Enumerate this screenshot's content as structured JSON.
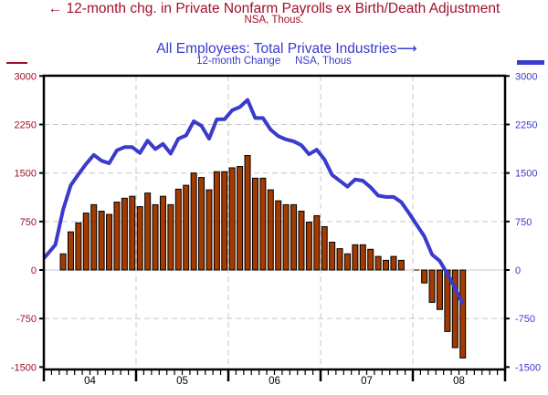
{
  "title_left": {
    "text": "12-month chg. in Private Nonfarm Payrolls ex Birth/Death Adjustment",
    "arrow": "←",
    "subtitle": "NSA, Thous."
  },
  "title_right": {
    "text": "All Employees: Total Private Industries",
    "arrow": "⟶",
    "subtitle_a": "12-month Change",
    "subtitle_b": "NSA, Thous"
  },
  "colors": {
    "left_series": "#a0102a",
    "bars_fill": "#a33a00",
    "right_series": "#3a3acc"
  },
  "chart_data": {
    "type": "bar+line",
    "grid": true,
    "x_tick_labels": [
      "04",
      "05",
      "06",
      "07",
      "08"
    ],
    "x_range": [
      "2004-01",
      "2008-12"
    ],
    "y_left": {
      "lim": [
        -1500,
        3000
      ],
      "ticks": [
        "3000",
        "2250",
        "1500",
        "750",
        "0",
        "-750",
        "-1500"
      ]
    },
    "y_right": {
      "lim": [
        -1500,
        3000
      ],
      "ticks": [
        "3000",
        "2250",
        "1500",
        "750",
        "0",
        "-750",
        "-1500"
      ]
    },
    "months": [
      "2004-01",
      "2004-02",
      "2004-03",
      "2004-04",
      "2004-05",
      "2004-06",
      "2004-07",
      "2004-08",
      "2004-09",
      "2004-10",
      "2004-11",
      "2004-12",
      "2005-01",
      "2005-02",
      "2005-03",
      "2005-04",
      "2005-05",
      "2005-06",
      "2005-07",
      "2005-08",
      "2005-09",
      "2005-10",
      "2005-11",
      "2005-12",
      "2006-01",
      "2006-02",
      "2006-03",
      "2006-04",
      "2006-05",
      "2006-06",
      "2006-07",
      "2006-08",
      "2006-09",
      "2006-10",
      "2006-11",
      "2006-12",
      "2007-01",
      "2007-02",
      "2007-03",
      "2007-04",
      "2007-05",
      "2007-06",
      "2007-07",
      "2007-08",
      "2007-09",
      "2007-10",
      "2007-11",
      "2007-12",
      "2008-01",
      "2008-02",
      "2008-03",
      "2008-04",
      "2008-05",
      "2008-06",
      "2008-07"
    ],
    "series": [
      {
        "name": "12-month chg. in Private Nonfarm Payrolls ex Birth/Death Adjustment",
        "type": "bar",
        "axis": "left",
        "values": [
          null,
          null,
          250,
          590,
          730,
          880,
          1010,
          910,
          860,
          1050,
          1110,
          1140,
          980,
          1190,
          1010,
          1140,
          1010,
          1250,
          1310,
          1500,
          1430,
          1240,
          1520,
          1520,
          1580,
          1600,
          1770,
          1420,
          1420,
          1240,
          1070,
          1010,
          1010,
          910,
          740,
          840,
          670,
          430,
          330,
          250,
          390,
          390,
          320,
          210,
          150,
          210,
          150,
          null,
          5,
          -200,
          -500,
          -610,
          -950,
          -1200,
          -1360
        ]
      },
      {
        "name": "All Employees: Total Private Industries",
        "type": "line",
        "axis": "right",
        "values": [
          180,
          390,
          930,
          1310,
          1480,
          1640,
          1780,
          1690,
          1650,
          1850,
          1900,
          1900,
          1810,
          2000,
          1870,
          1950,
          1800,
          2030,
          2080,
          2300,
          2230,
          2030,
          2330,
          2330,
          2470,
          2520,
          2630,
          2350,
          2350,
          2170,
          2070,
          2020,
          1990,
          1930,
          1790,
          1860,
          1710,
          1470,
          1380,
          1290,
          1400,
          1380,
          1280,
          1150,
          1130,
          1130,
          1050,
          880,
          700,
          520,
          240,
          140,
          -60,
          -280,
          -530
        ]
      }
    ]
  }
}
